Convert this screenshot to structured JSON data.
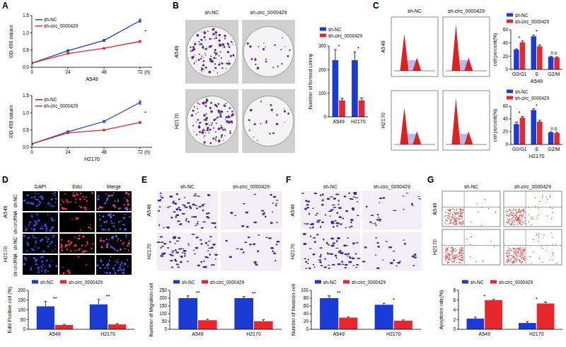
{
  "panel_labels": [
    "A",
    "B",
    "C",
    "D",
    "E",
    "F",
    "G"
  ],
  "image_panels": [
    {
      "columns": [
        "sh-NC",
        "sh-circ_0000429"
      ],
      "rows": [
        "A549",
        "H2170"
      ]
    },
    {
      "columns": [
        "sh-NC",
        "sh-circ_0000429"
      ],
      "rows": [
        "A549",
        "H2170"
      ]
    },
    {
      "columns": [
        "DAPI",
        "EdU",
        "Merge"
      ],
      "row_groups": [
        {
          "label": "A549",
          "rows": [
            "sh-NC",
            "sh-circRNA"
          ]
        },
        {
          "label": "H2170",
          "rows": [
            "sh-NC",
            "sh-circRNA"
          ]
        }
      ]
    },
    {
      "columns": [
        "sh-NC",
        "sh-circ_0000429"
      ],
      "rows": [
        "A549",
        "H2170"
      ]
    },
    {
      "columns": [
        "sh-NC",
        "sh-circ_0000429"
      ],
      "rows": [
        "A549",
        "H2170"
      ]
    },
    {
      "columns": [
        "sh-NC",
        "sh-circ_0000429"
      ],
      "rows": [
        "A549",
        "H2170"
      ]
    }
  ],
  "chart_data": [
    {
      "type": "line",
      "x_label": "A549",
      "x_unit_label": "(h)",
      "y_label": "OD 450 values",
      "x": [
        0,
        24,
        48,
        72
      ],
      "xlim": [
        0,
        80
      ],
      "xticks": [
        0,
        24,
        48,
        72
      ],
      "ylim": [
        0,
        1.5
      ],
      "yticks": [
        {
          "value": 0,
          "label": "0.0"
        },
        {
          "value": 0.5,
          "label": "0.5"
        },
        {
          "value": 1,
          "label": "1.0"
        },
        {
          "value": 1.5,
          "label": "1.5"
        }
      ],
      "series": [
        {
          "name": "sh-NC",
          "color": "#1b3bd6",
          "values": [
            0.12,
            0.48,
            0.78,
            1.35
          ],
          "error": [
            0.01,
            0.03,
            0.03,
            0.05
          ]
        },
        {
          "name": "sh-circ_0000429",
          "color": "#e8262b",
          "values": [
            0.12,
            0.4,
            0.55,
            0.75
          ],
          "error": [
            0.01,
            0.02,
            0.02,
            0.03
          ]
        }
      ],
      "marker": "circle",
      "legend": "top-left",
      "grid": false,
      "annotations": [
        "*"
      ]
    },
    {
      "type": "line",
      "x_label": "H2170",
      "x_unit_label": "(h)",
      "y_label": "OD 450 values",
      "x": [
        0,
        24,
        48,
        72
      ],
      "xlim": [
        0,
        80
      ],
      "xticks": [
        0,
        24,
        48,
        72
      ],
      "ylim": [
        0,
        1.5
      ],
      "yticks": [
        {
          "value": 0,
          "label": "0.0"
        },
        {
          "value": 0.5,
          "label": "0.5"
        },
        {
          "value": 1,
          "label": "1.0"
        },
        {
          "value": 1.5,
          "label": "1.5"
        }
      ],
      "series": [
        {
          "name": "sh-NC",
          "color": "#1b3bd6",
          "values": [
            0.1,
            0.45,
            0.75,
            1.3
          ],
          "error": [
            0.01,
            0.03,
            0.03,
            0.06
          ]
        },
        {
          "name": "sh-circ_0000429",
          "color": "#e8262b",
          "values": [
            0.1,
            0.42,
            0.5,
            0.72
          ],
          "error": [
            0.01,
            0.02,
            0.02,
            0.03
          ]
        }
      ],
      "marker": "circle",
      "legend": "top-left",
      "grid": false,
      "annotations": [
        "*"
      ]
    },
    {
      "type": "bar",
      "y_label": "Number of formed colony",
      "categories": [
        "A549",
        "H2170"
      ],
      "ylim": [
        0,
        300
      ],
      "yticks": [
        0,
        100,
        200,
        300
      ],
      "series": [
        {
          "name": "sh-NC",
          "color": "#1b3bd6",
          "values": [
            240,
            240
          ],
          "error": [
            45,
            35
          ]
        },
        {
          "name": "sh-circ_0000429",
          "color": "#e8262b",
          "values": [
            70,
            70
          ],
          "error": [
            8,
            10
          ]
        }
      ],
      "legend": "top-left",
      "grid": false,
      "annotations": [
        "*",
        "*"
      ]
    },
    {
      "type": "bar",
      "y_label": "cell percent(%)",
      "x_label": "A549",
      "categories": [
        "G0/G1",
        "S",
        "G2/M"
      ],
      "ylim": [
        0,
        60
      ],
      "yticks": [
        0,
        20,
        40,
        60
      ],
      "series": [
        {
          "name": "sh-NC",
          "color": "#1b3bd6",
          "values": [
            30,
            50,
            19
          ],
          "error": [
            1,
            2,
            1
          ]
        },
        {
          "name": "sh-circ_0000429",
          "color": "#e8262b",
          "values": [
            41,
            35,
            18
          ],
          "error": [
            2,
            2,
            1
          ]
        }
      ],
      "legend": "top-left",
      "grid": false,
      "annotations": [
        "*",
        "*",
        "n.s"
      ]
    },
    {
      "type": "bar",
      "y_label": "cell percent(%)",
      "x_label": "H2170",
      "categories": [
        "G0/G1",
        "S",
        "G2/M"
      ],
      "ylim": [
        0,
        60
      ],
      "yticks": [
        0,
        20,
        40,
        60
      ],
      "series": [
        {
          "name": "sh-NC",
          "color": "#1b3bd6",
          "values": [
            32,
            54,
            19
          ],
          "error": [
            3,
            2,
            1
          ]
        },
        {
          "name": "sh-circ_0000429",
          "color": "#e8262b",
          "values": [
            42,
            36,
            18
          ],
          "error": [
            2,
            2,
            1
          ]
        }
      ],
      "legend": "top-left",
      "grid": false,
      "annotations": [
        "*",
        "*",
        "n.s"
      ]
    },
    {
      "type": "bar",
      "y_label": "EdU Positive cell (%)",
      "categories": [
        "A549",
        "H2170"
      ],
      "ylim": [
        0,
        200
      ],
      "yticks": [
        0,
        50,
        100,
        150,
        200
      ],
      "series": [
        {
          "name": "sh-NC",
          "color": "#1b3bd6",
          "values": [
            118,
            128
          ],
          "error": [
            25,
            25
          ]
        },
        {
          "name": "sh-circ_0000429",
          "color": "#e8262b",
          "values": [
            22,
            25
          ],
          "error": [
            3,
            4
          ]
        }
      ],
      "legend": "top-left",
      "grid": false,
      "annotations": [
        "**",
        "**"
      ]
    },
    {
      "type": "bar",
      "y_label": "Number of Migration cell",
      "categories": [
        "A549",
        "H2170"
      ],
      "ylim": [
        0,
        250
      ],
      "yticks": [
        0,
        50,
        100,
        150,
        200,
        250
      ],
      "series": [
        {
          "name": "sh-NC",
          "color": "#1b3bd6",
          "values": [
            200,
            200
          ],
          "error": [
            15,
            10
          ]
        },
        {
          "name": "sh-circ_0000429",
          "color": "#e8262b",
          "values": [
            58,
            52
          ],
          "error": [
            6,
            10
          ]
        }
      ],
      "legend": "top-left",
      "grid": false,
      "annotations": [
        "**",
        "**"
      ]
    },
    {
      "type": "bar",
      "y_label": "Number of Invasion cell",
      "categories": [
        "A549",
        "H2170"
      ],
      "ylim": [
        0,
        100
      ],
      "yticks": [
        0,
        20,
        40,
        60,
        80,
        100
      ],
      "series": [
        {
          "name": "sh-NC",
          "color": "#1b3bd6",
          "values": [
            80,
            63
          ],
          "error": [
            6,
            4
          ]
        },
        {
          "name": "sh-circ_0000429",
          "color": "#e8262b",
          "values": [
            30,
            22
          ],
          "error": [
            2,
            2
          ]
        }
      ],
      "legend": "top-left",
      "grid": false,
      "annotations": [
        "**",
        "*"
      ]
    },
    {
      "type": "bar",
      "y_label": "Apoptosis rate(%)",
      "categories": [
        "A549",
        "H2170"
      ],
      "ylim": [
        0,
        8
      ],
      "yticks": [
        0,
        2,
        4,
        6,
        8
      ],
      "series": [
        {
          "name": "sh-NC",
          "color": "#1b3bd6",
          "values": [
            2.2,
            1.3
          ],
          "error": [
            0.3,
            0.3
          ]
        },
        {
          "name": "sh-circ_0000429",
          "color": "#e8262b",
          "values": [
            6.0,
            5.3
          ],
          "error": [
            0.15,
            0.3
          ]
        }
      ],
      "legend": "top-left",
      "grid": false,
      "annotations": [
        "*",
        "*"
      ]
    }
  ]
}
